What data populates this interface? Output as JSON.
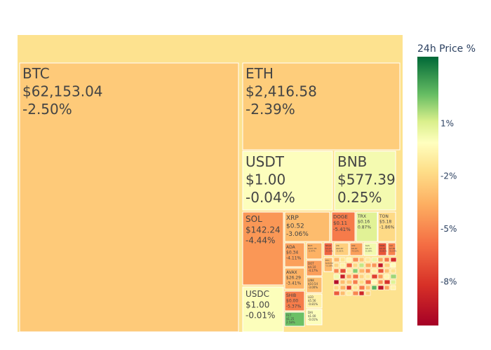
{
  "chart_data": {
    "type": "treemap",
    "colorbar": {
      "title": "24h Price %",
      "ticks": [
        "1%",
        "-2%",
        "-5%",
        "-8%"
      ],
      "tick_values": [
        1,
        -2,
        -5,
        -8
      ],
      "range": [
        -10.5,
        4.8
      ]
    },
    "root_color": "#fde28f",
    "tiles": [
      {
        "label": "BTC",
        "price": "$62,153.04",
        "change": "-2.50%",
        "pct": -2.5
      },
      {
        "label": "ETH",
        "price": "$2,416.58",
        "change": "-2.39%",
        "pct": -2.39
      },
      {
        "label": "USDT",
        "price": "$1.00",
        "change": "-0.04%",
        "pct": -0.04
      },
      {
        "label": "BNB",
        "price": "$577.39",
        "change": "0.25%",
        "pct": 0.25
      },
      {
        "label": "SOL",
        "price": "$142.24",
        "change": "-4.44%",
        "pct": -4.44
      },
      {
        "label": "USDC",
        "price": "$1.00",
        "change": "-0.01%",
        "pct": -0.01
      },
      {
        "label": "XRP",
        "price": "$0.52",
        "change": "-3.06%",
        "pct": -3.06
      },
      {
        "label": "DOGE",
        "price": "$0.11",
        "change": "-5.41%",
        "pct": -5.41
      },
      {
        "label": "TRX",
        "price": "$0.16",
        "change": "0.87%",
        "pct": 0.87
      },
      {
        "label": "TON",
        "price": "$5.18",
        "change": "-1.86%",
        "pct": -1.86
      },
      {
        "label": "ADA",
        "price": "$0.34",
        "change": "-4.11%",
        "pct": -4.11
      },
      {
        "label": "AVAX",
        "price": "$26.29",
        "change": "-3.41%",
        "pct": -3.41
      },
      {
        "label": "SHIB",
        "price": "$0.00",
        "change": "-5.37%",
        "pct": -5.37
      },
      {
        "label": "DOT",
        "price": "$4.10",
        "change": "-4.17%",
        "pct": -4.17
      },
      {
        "label": "LINK",
        "price": "$10.54",
        "change": "-3.00%",
        "pct": -3.0
      },
      {
        "label": "LEO",
        "price": "$5.56",
        "change": "-0.81%",
        "pct": -0.81
      },
      {
        "label": "DAI",
        "price": "$1.00",
        "change": "-0.01%",
        "pct": -0.01
      },
      {
        "label": "BCH",
        "price": "$327.35",
        "change": "-3.47%",
        "pct": -3.47
      },
      {
        "label": "NEAR",
        "price": "$4.23",
        "change": "-6.22%",
        "pct": -6.22
      },
      {
        "label": "LTC",
        "price": "$62.87",
        "change": "-2.31%",
        "pct": -2.31
      },
      {
        "label": "UNI",
        "price": "$6.67",
        "change": "-4.12%",
        "pct": -4.12
      },
      {
        "label": "KAS",
        "price": "$0.13",
        "change": "0.30%",
        "pct": 0.3
      },
      {
        "label": "PEPE",
        "price": "$0.00",
        "change": "-6.81%",
        "pct": -6.81
      },
      {
        "label": "ICP",
        "price": "$7.82",
        "change": "-5.14%",
        "pct": -5.14
      },
      {
        "label": "FET",
        "price": "$1.25",
        "change": "2.58%",
        "pct": 2.58
      },
      {
        "label": "ETC",
        "price": "$18.30",
        "change": "-3.18%",
        "pct": -3.18
      }
    ],
    "small_tiles_pct": [
      -3.2,
      -1.5,
      -0.5,
      -4.8,
      -2.7,
      -1.2,
      0.6,
      -3.9,
      -5.6,
      -8.4,
      -2.1,
      -0.8,
      -6.3,
      -1.9,
      1.4,
      -3.6,
      -4.4,
      -9.2,
      -2.4,
      -0.2,
      -5.1,
      -7.1,
      -1.1,
      2.2,
      -3.3,
      -4.9,
      -0.9,
      -6.8,
      -2.9,
      -1.6,
      0.4,
      -8.9,
      -3.7,
      -5.8,
      -2.2,
      -1.3,
      -7.6,
      -4.2,
      -0.6,
      1.9,
      -9.8,
      -3.1,
      -2.6,
      -5.3,
      -1.8,
      -6.1,
      -0.3,
      -4.7,
      -8.1,
      0.9,
      -2.0,
      -3.5,
      -7.9,
      -1.4,
      -5.5,
      -2.8,
      2.9,
      -9.4,
      -4.0,
      -0.7,
      -6.6,
      -3.0,
      -1.0,
      -5.0,
      -8.6,
      -2.3
    ]
  }
}
